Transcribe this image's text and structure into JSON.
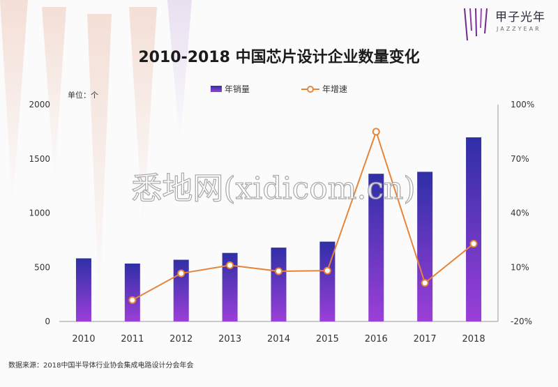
{
  "brand": {
    "name_cn": "甲子光年",
    "name_en": "JAZZYEAR"
  },
  "source_note": "数据来源：2018中国半导体行业协会集成电路设计分会年会",
  "watermark": "悉地网(xidicom.cn)",
  "colors": {
    "bar_top": "#2f2fa6",
    "bar_bottom": "#9b3fd8",
    "line": "#e6843a",
    "grid": "#dddddd"
  },
  "chart_data": {
    "type": "bar",
    "title": "2010-2018 中国芯片设计企业数量变化",
    "unit_label": "单位：个",
    "categories": [
      "2010",
      "2011",
      "2012",
      "2013",
      "2014",
      "2015",
      "2016",
      "2017",
      "2018"
    ],
    "series": [
      {
        "name": "年销量",
        "type": "bar",
        "axis": "left",
        "values": [
          582,
          534,
          569,
          632,
          681,
          736,
          1362,
          1380,
          1698
        ]
      },
      {
        "name": "年增速",
        "type": "line",
        "axis": "right",
        "values": [
          null,
          -8.2,
          6.6,
          11.1,
          7.8,
          8.1,
          85.0,
          1.3,
          23.0
        ]
      }
    ],
    "y_left": {
      "min": 0,
      "max": 2000,
      "ticks": [
        "0",
        "500",
        "1000",
        "1500",
        "2000"
      ],
      "tick_values": [
        0,
        500,
        1000,
        1500,
        2000
      ]
    },
    "y_right": {
      "min": -20,
      "max": 100,
      "ticks": [
        "-20%",
        "10%",
        "40%",
        "70%",
        "100%"
      ],
      "tick_values": [
        -20,
        10,
        40,
        70,
        100
      ]
    },
    "legend_position": "top",
    "grid": false
  }
}
